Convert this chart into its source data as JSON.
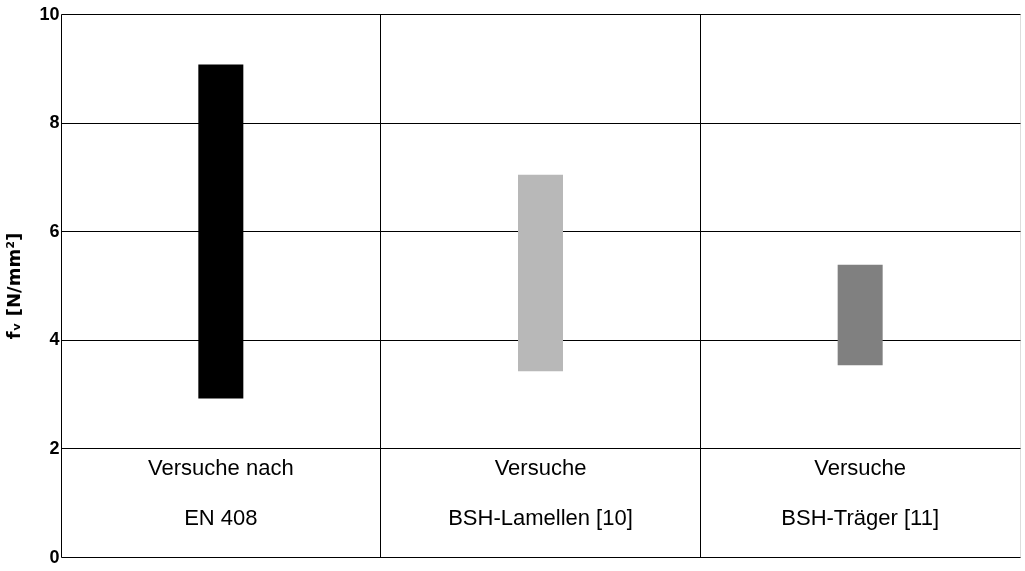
{
  "chart_data": {
    "type": "bar",
    "ylabel": "fᵥ [N/mm²]",
    "categories": [
      "Versuche nach\nEN 408",
      "Versuche\nBSH-Lamellen [10]",
      "Versuche\nBSH-Träger [11]"
    ],
    "base": [
      2.92,
      3.42,
      3.53
    ],
    "values": [
      6.15,
      3.62,
      1.85
    ],
    "colors": [
      "#000000",
      "#b8b8b8",
      "#808080"
    ],
    "ylim": [
      0,
      10
    ],
    "yticks": [
      0,
      2,
      4,
      6,
      8,
      10
    ],
    "grid": true
  }
}
